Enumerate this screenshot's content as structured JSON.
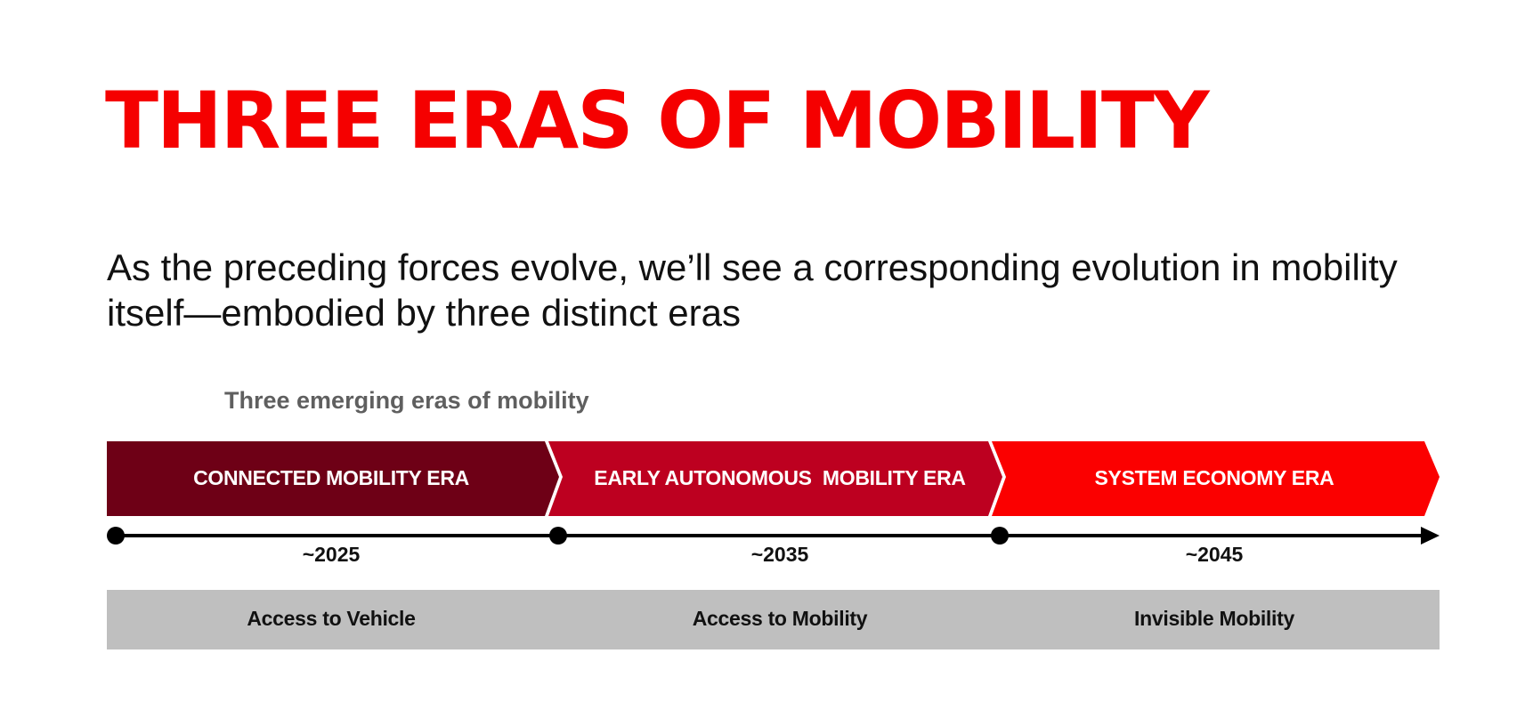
{
  "title": "THREE ERAS OF MOBILITY",
  "subtitle": "As the preceding forces evolve, we’ll see a corresponding evolution in mobility itself—embodied by three distinct eras",
  "diagram": {
    "heading": "Three emerging eras of mobility",
    "eras": [
      {
        "label": "CONNECTED MOBILITY ERA",
        "year": "~2025",
        "outcome": "Access to Vehicle",
        "color": "#6e0016"
      },
      {
        "label": "EARLY AUTONOMOUS  MOBILITY ERA",
        "year": "~2035",
        "outcome": "Access to Mobility",
        "color": "#bd0020"
      },
      {
        "label": "SYSTEM ECONOMY ERA",
        "year": "~2045",
        "outcome": "Invisible Mobility",
        "color": "#fb0000"
      }
    ],
    "colors": {
      "timeline": "#000000",
      "outcome_band": "#bfbfbf"
    }
  }
}
